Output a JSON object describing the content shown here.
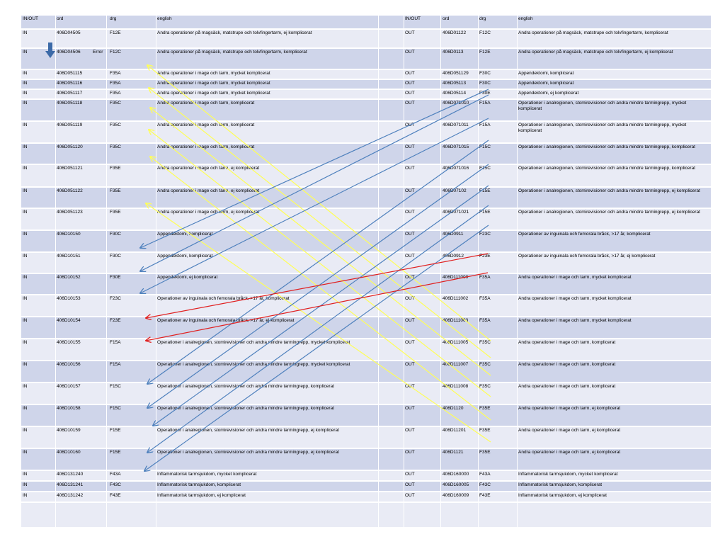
{
  "headers": {
    "left": {
      "inout": "IN/OUT",
      "ord": "ord",
      "drg": "drg",
      "english": "english"
    },
    "right": {
      "inout": "IN/OUT",
      "ord": "ord",
      "drg": "drg",
      "english": "english"
    }
  },
  "error_note": {
    "label": "Error"
  },
  "rows": [
    {
      "l_inout": "IN",
      "l_ord": "406D04505",
      "l_drg": "F12E",
      "l_text": "Andra operationer på magsäck, matstrupe och tolvfingertarm, ej komplicerat",
      "r_inout": "OUT",
      "r_ord": "406D01122",
      "r_drg": "F12C",
      "r_text": "Andra operationer på magsäck, matstrupe och tolvfingertarm, komplicerat"
    },
    {
      "l_inout": "IN",
      "l_ord": "406D04506",
      "l_drg": "F12C",
      "l_text": "Andra operationer på magsäck, matstrupe och tolvfingertarm, komplicerat",
      "r_inout": "OUT",
      "r_ord": "406D0113",
      "r_drg": "F12E",
      "r_text": "Andra operationer på magsäck, matstrupe och tolvfingertarm, ej komplicerat"
    },
    {
      "l_inout": "IN",
      "l_ord": "406D051115",
      "l_drg": "F35A",
      "l_text": "Andra operationer i mage och tarm, mycket komplicerat",
      "r_inout": "OUT",
      "r_ord": "406D051129",
      "r_drg": "F30C",
      "r_text": "Appendektomi, komplicerat"
    },
    {
      "l_inout": "IN",
      "l_ord": "406D051116",
      "l_drg": "F35A",
      "l_text": "Andra operationer i mage och tarm, mycket komplicerat",
      "r_inout": "OUT",
      "r_ord": "406D05113",
      "r_drg": "F30C",
      "r_text": "Appendektomi, komplicerat"
    },
    {
      "l_inout": "IN",
      "l_ord": "406D051117",
      "l_drg": "F35A",
      "l_text": "Andra operationer i mage och tarm, mycket komplicerat",
      "r_inout": "OUT",
      "r_ord": "406D05114",
      "r_drg": "F30E",
      "r_text": "Appendektomi, ej komplicerat"
    },
    {
      "l_inout": "IN",
      "l_ord": "406D051118",
      "l_drg": "F35C",
      "l_text": "Andra operationer i mage och tarm, komplicerat",
      "r_inout": "OUT",
      "r_ord": "406D071010",
      "r_drg": "F15A",
      "r_text": "Operationer i analregionen, stomirevisioner och andra mindre tarmingrepp, mycket komplicerat"
    },
    {
      "l_inout": "IN",
      "l_ord": "406D051119",
      "l_drg": "F35C",
      "l_text": "Andra operationer i mage och tarm, komplicerat",
      "r_inout": "OUT",
      "r_ord": "406D071011",
      "r_drg": "F15A",
      "r_text": "Operationer i analregionen, stomirevisioner och andra mindre tarmingrepp, mycket komplicerat"
    },
    {
      "l_inout": "IN",
      "l_ord": "406D051120",
      "l_drg": "F35C",
      "l_text": "Andra operationer i mage och tarm, komplicerat",
      "r_inout": "OUT",
      "r_ord": "406D071015",
      "r_drg": "F15C",
      "r_text": "Operationer i analregionen, stomirevisioner och andra mindre tarmingrepp, komplicerat"
    },
    {
      "l_inout": "IN",
      "l_ord": "406D051121",
      "l_drg": "F35E",
      "l_text": "Andra operationer i mage och tarm, ej komplicerat",
      "r_inout": "OUT",
      "r_ord": "406D071016",
      "r_drg": "F15C",
      "r_text": "Operationer i analregionen, stomirevisioner och andra mindre tarmingrepp, komplicerat"
    },
    {
      "l_inout": "IN",
      "l_ord": "406D051122",
      "l_drg": "F35E",
      "l_text": "Andra operationer i mage och tarm, ej komplicerat",
      "r_inout": "OUT",
      "r_ord": "406D07102",
      "r_drg": "F15E",
      "r_text": "Operationer i analregionen, stomirevisioner och andra mindre tarmingrepp, ej komplicerat"
    },
    {
      "l_inout": "IN",
      "l_ord": "406D051123",
      "l_drg": "F35E",
      "l_text": "Andra operationer i mage och tarm, ej komplicerat",
      "r_inout": "OUT",
      "r_ord": "406D071021",
      "r_drg": "F15E",
      "r_text": "Operationer i analregionen, stomirevisioner och andra mindre tarmingrepp, ej komplicerat"
    },
    {
      "l_inout": "IN",
      "l_ord": "406D10150",
      "l_drg": "F30C",
      "l_text": "Appendektomi, komplicerat",
      "r_inout": "OUT",
      "r_ord": "406D0911",
      "r_drg": "F23C",
      "r_text": "Operationer av inguinala och femorala bråck, >17 år, komplicerat"
    },
    {
      "l_inout": "IN",
      "l_ord": "406D10151",
      "l_drg": "F30C",
      "l_text": "Appendektomi, komplicerat",
      "r_inout": "OUT",
      "r_ord": "406D0912",
      "r_drg": "F23E",
      "r_text": "Operationer av inguinala och femorala bråck, >17 år, ej komplicerat"
    },
    {
      "l_inout": "IN",
      "l_ord": "406D10152",
      "l_drg": "F30E",
      "l_text": "Appendektomi, ej komplicerat",
      "r_inout": "OUT",
      "r_ord": "406D111000",
      "r_drg": "F35A",
      "r_text": "Andra operationer i mage och tarm, mycket komplicerat"
    },
    {
      "l_inout": "IN",
      "l_ord": "406D10153",
      "l_drg": "F23C",
      "l_text": "Operationer av inguinala och femorala bråck, >17 år, komplicerat",
      "r_inout": "OUT",
      "r_ord": "406D111002",
      "r_drg": "F35A",
      "r_text": "Andra operationer i mage och tarm, mycket komplicerat"
    },
    {
      "l_inout": "IN",
      "l_ord": "406D10154",
      "l_drg": "F23E",
      "l_text": "Operationer av inguinala och femorala bråck, >17 år, ej komplicerat",
      "r_inout": "OUT",
      "r_ord": "406D111003",
      "r_drg": "F35A",
      "r_text": "Andra operationer i mage och tarm, mycket komplicerat"
    },
    {
      "l_inout": "IN",
      "l_ord": "406D10155",
      "l_drg": "F15A",
      "l_text": "Operationer i analregionen, stomirevisioner och andra mindre tarmingrepp, mycket komplicerat",
      "r_inout": "OUT",
      "r_ord": "406D111005",
      "r_drg": "F35C",
      "r_text": "Andra operationer i mage och tarm, komplicerat"
    },
    {
      "l_inout": "IN",
      "l_ord": "406D10156",
      "l_drg": "F15A",
      "l_text": "Operationer i analregionen, stomirevisioner och andra mindre tarmingrepp, mycket komplicerat",
      "r_inout": "OUT",
      "r_ord": "406D111007",
      "r_drg": "F35C",
      "r_text": "Andra operationer i mage och tarm, komplicerat"
    },
    {
      "l_inout": "IN",
      "l_ord": "406D10157",
      "l_drg": "F15C",
      "l_text": "Operationer i analregionen, stomirevisioner och andra mindre tarmingrepp, komplicerat",
      "r_inout": "OUT",
      "r_ord": "406D111008",
      "r_drg": "F35C",
      "r_text": "Andra operationer i mage och tarm, komplicerat"
    },
    {
      "l_inout": "IN",
      "l_ord": "406D10158",
      "l_drg": "F15C",
      "l_text": "Operationer i analregionen, stomirevisioner och andra mindre tarmingrepp, komplicerat",
      "r_inout": "OUT",
      "r_ord": "406D1120",
      "r_drg": "F35E",
      "r_text": "Andra operationer i mage och tarm, ej komplicerat"
    },
    {
      "l_inout": "IN",
      "l_ord": "406D10159",
      "l_drg": "F15E",
      "l_text": "Operationer i analregionen, stomirevisioner och andra mindre tarmingrepp, ej komplicerat",
      "r_inout": "OUT",
      "r_ord": "406D11201",
      "r_drg": "F35E",
      "r_text": "Andra operationer i mage och tarm, ej komplicerat"
    },
    {
      "l_inout": "IN",
      "l_ord": "406D10160",
      "l_drg": "F15E",
      "l_text": "Operationer i analregionen, stomirevisioner och andra mindre tarmingrepp, ej komplicerat",
      "r_inout": "OUT",
      "r_ord": "406D1121",
      "r_drg": "F35E",
      "r_text": "Andra operationer i mage och tarm, ej komplicerat"
    },
    {
      "l_inout": "IN",
      "l_ord": "406D131240",
      "l_drg": "F43A",
      "l_text": "Inflammatorisk tarmsjukdom, mycket komplicerat",
      "r_inout": "OUT",
      "r_ord": "406D160000",
      "r_drg": "F43A",
      "r_text": "Inflammatorisk tarmsjukdom, mycket komplicerat"
    },
    {
      "l_inout": "IN",
      "l_ord": "406D131241",
      "l_drg": "F43C",
      "l_text": "Inflammatorisk tarmsjukdom, komplicerat",
      "r_inout": "OUT",
      "r_ord": "406D160005",
      "r_drg": "F43C",
      "r_text": "Inflammatorisk tarmsjukdom, komplicerat"
    },
    {
      "l_inout": "IN",
      "l_ord": "406D131242",
      "l_drg": "F43E",
      "l_text": "Inflammatorisk tarmsjukdom, ej komplicerat",
      "r_inout": "OUT",
      "r_ord": "406D160009",
      "r_drg": "F43E",
      "r_text": "Inflammatorisk tarmsjukdom, ej komplicerat"
    }
  ],
  "arrow_colors": {
    "yellow": "#ffff55",
    "blue": "#4f81bd",
    "red": "#e02020",
    "error_marker": "#3c6aa8"
  }
}
